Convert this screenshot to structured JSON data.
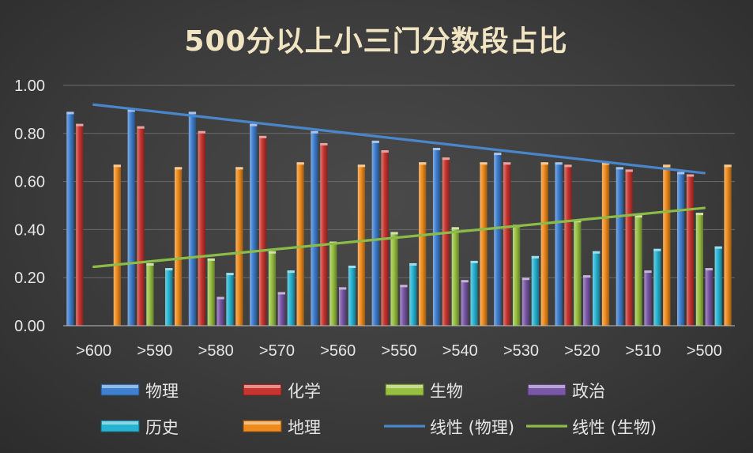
{
  "chart_data": {
    "type": "bar",
    "title": "500分以上小三门分数段占比",
    "xlabel": "",
    "ylabel": "",
    "ylim": [
      0,
      1
    ],
    "yticks": [
      "0.00",
      "0.20",
      "0.40",
      "0.60",
      "0.80",
      "1.00"
    ],
    "grid": true,
    "legend_position": "bottom",
    "categories": [
      ">600",
      ">590",
      ">580",
      ">570",
      ">560",
      ">550",
      ">540",
      ">530",
      ">520",
      ">510",
      ">500"
    ],
    "series": [
      {
        "name": "物理",
        "color": "#3f7fd0",
        "values": [
          0.89,
          0.9,
          0.89,
          0.84,
          0.81,
          0.77,
          0.74,
          0.72,
          0.68,
          0.66,
          0.64
        ]
      },
      {
        "name": "化学",
        "color": "#c8352f",
        "values": [
          0.84,
          0.83,
          0.81,
          0.79,
          0.76,
          0.73,
          0.7,
          0.68,
          0.67,
          0.65,
          0.63
        ]
      },
      {
        "name": "生物",
        "color": "#97c040",
        "values": [
          0,
          0.26,
          0.28,
          0.31,
          0.35,
          0.39,
          0.41,
          0.42,
          0.44,
          0.46,
          0.47
        ]
      },
      {
        "name": "政治",
        "color": "#7a58a8",
        "values": [
          0,
          0,
          0.12,
          0.14,
          0.16,
          0.17,
          0.19,
          0.2,
          0.21,
          0.23,
          0.24
        ]
      },
      {
        "name": "历史",
        "color": "#27b4d2",
        "values": [
          0,
          0.24,
          0.22,
          0.23,
          0.25,
          0.26,
          0.27,
          0.29,
          0.31,
          0.32,
          0.33
        ]
      },
      {
        "name": "地理",
        "color": "#ef8b1c",
        "values": [
          0.67,
          0.66,
          0.66,
          0.68,
          0.67,
          0.68,
          0.68,
          0.68,
          0.68,
          0.67,
          0.67
        ]
      }
    ],
    "trendlines": [
      {
        "name": "线性 (物理)",
        "color": "#4a86cc",
        "start": 0.92,
        "end": 0.635
      },
      {
        "name": "线性 (生物)",
        "color": "#8cbc48",
        "start": 0.245,
        "end": 0.49
      }
    ]
  }
}
